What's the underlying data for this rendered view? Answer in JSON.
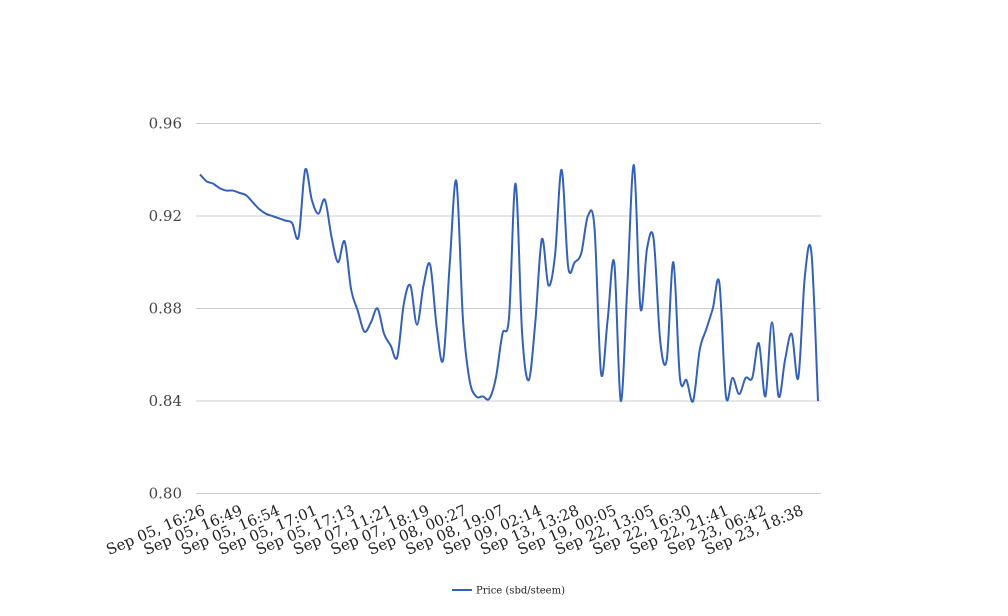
{
  "chart_data": {
    "type": "line",
    "title": "",
    "xlabel": "",
    "ylabel": "",
    "ylim": [
      0.8,
      0.96
    ],
    "yticks": [
      "0.80",
      "0.84",
      "0.88",
      "0.92",
      "0.96"
    ],
    "grid": true,
    "legend_position": "bottom-center",
    "x_tick_labels": [
      "Sep 05, 16:26",
      "Sep 05, 16:49",
      "Sep 05, 16:54",
      "Sep 05, 17:01",
      "Sep 05, 17:13",
      "Sep 07, 11:21",
      "Sep 07, 18:19",
      "Sep 08, 00:27",
      "Sep 08, 19:07",
      "Sep 09, 02:14",
      "Sep 13, 13:28",
      "Sep 19, 00:05",
      "Sep 22, 13:05",
      "Sep 22, 16:30",
      "Sep 22, 21:41",
      "Sep 23, 06:42",
      "Sep 23, 18:38"
    ],
    "series": [
      {
        "name": "Price (sbd/steem)",
        "color": "#3461b8",
        "values": [
          0.938,
          0.935,
          0.934,
          0.932,
          0.931,
          0.931,
          0.93,
          0.929,
          0.926,
          0.923,
          0.921,
          0.92,
          0.919,
          0.918,
          0.917,
          0.911,
          0.94,
          0.927,
          0.921,
          0.927,
          0.911,
          0.9,
          0.909,
          0.888,
          0.879,
          0.87,
          0.874,
          0.88,
          0.869,
          0.864,
          0.859,
          0.882,
          0.89,
          0.873,
          0.89,
          0.899,
          0.872,
          0.858,
          0.9,
          0.935,
          0.875,
          0.849,
          0.842,
          0.842,
          0.841,
          0.85,
          0.869,
          0.876,
          0.934,
          0.869,
          0.849,
          0.874,
          0.91,
          0.89,
          0.903,
          0.94,
          0.898,
          0.9,
          0.904,
          0.92,
          0.915,
          0.852,
          0.875,
          0.9,
          0.84,
          0.89,
          0.942,
          0.88,
          0.906,
          0.91,
          0.866,
          0.858,
          0.9,
          0.85,
          0.849,
          0.84,
          0.862,
          0.871,
          0.88,
          0.891,
          0.842,
          0.85,
          0.843,
          0.85,
          0.85,
          0.865,
          0.842,
          0.874,
          0.842,
          0.858,
          0.869,
          0.85,
          0.894,
          0.904,
          0.84
        ]
      }
    ]
  }
}
